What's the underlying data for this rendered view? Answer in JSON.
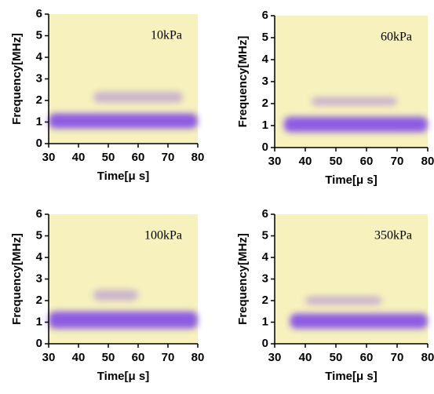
{
  "chart_data": [
    {
      "type": "spectrogram",
      "annotation": "10kPa",
      "xlabel": "Time[μ s]",
      "ylabel": "Frequency[MHz]",
      "xlim": [
        30,
        80
      ],
      "xticks": [
        30,
        40,
        50,
        60,
        70,
        80
      ],
      "ylim": [
        0,
        6
      ],
      "yticks": [
        0,
        1,
        2,
        3,
        4,
        5,
        6
      ],
      "background": "#f6f1bd",
      "color": "#6a2cf0",
      "bands": [
        {
          "x": [
            30,
            80
          ],
          "y": [
            0.7,
            1.4
          ]
        },
        {
          "x": [
            45,
            75
          ],
          "y": [
            1.9,
            2.4
          ]
        }
      ]
    },
    {
      "type": "spectrogram",
      "annotation": "60kPa",
      "xlabel": "Time[μ s]",
      "ylabel": "Frequency[MHz]",
      "xlim": [
        30,
        80
      ],
      "xticks": [
        30,
        40,
        50,
        60,
        70,
        80
      ],
      "ylim": [
        0,
        6
      ],
      "yticks": [
        0,
        1,
        2,
        3,
        4,
        5,
        6
      ],
      "background": "#f6f1bd",
      "color": "#6a2cf0",
      "bands": [
        {
          "x": [
            33,
            80
          ],
          "y": [
            0.7,
            1.4
          ]
        },
        {
          "x": [
            42,
            70
          ],
          "y": [
            1.9,
            2.3
          ]
        }
      ]
    },
    {
      "type": "spectrogram",
      "annotation": "100kPa",
      "xlabel": "Time[μ s]",
      "ylabel": "Frequency[MHz]",
      "xlim": [
        30,
        80
      ],
      "xticks": [
        30,
        40,
        50,
        60,
        70,
        80
      ],
      "ylim": [
        0,
        6
      ],
      "yticks": [
        0,
        1,
        2,
        3,
        4,
        5,
        6
      ],
      "background": "#f6f1bd",
      "color": "#6a2cf0",
      "bands": [
        {
          "x": [
            30,
            80
          ],
          "y": [
            0.7,
            1.5
          ]
        },
        {
          "x": [
            45,
            60
          ],
          "y": [
            2.0,
            2.5
          ]
        }
      ]
    },
    {
      "type": "spectrogram",
      "annotation": "350kPa",
      "xlabel": "Time[μ s]",
      "ylabel": "Frequency[MHz]",
      "xlim": [
        30,
        80
      ],
      "xticks": [
        30,
        40,
        50,
        60,
        70,
        80
      ],
      "ylim": [
        0,
        6
      ],
      "yticks": [
        0,
        1,
        2,
        3,
        4,
        5,
        6
      ],
      "background": "#f6f1bd",
      "color": "#6a2cf0",
      "bands": [
        {
          "x": [
            35,
            80
          ],
          "y": [
            0.7,
            1.4
          ]
        },
        {
          "x": [
            40,
            65
          ],
          "y": [
            1.8,
            2.2
          ]
        }
      ]
    }
  ]
}
